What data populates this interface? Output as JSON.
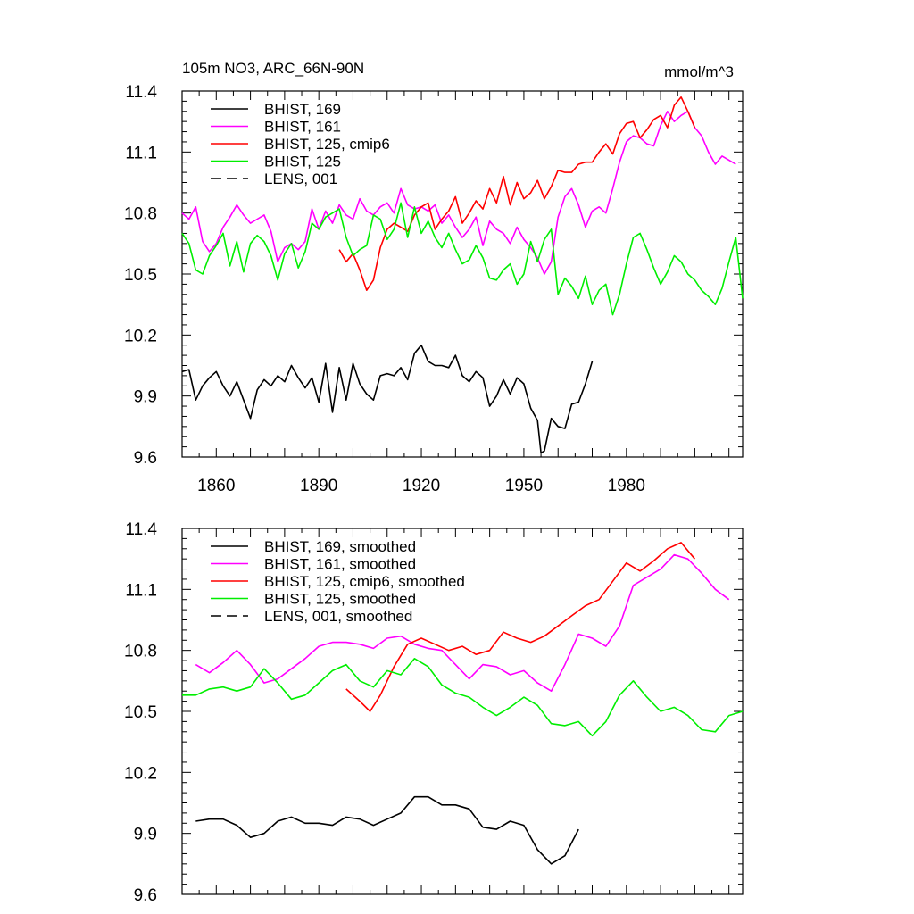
{
  "chart_data": [
    {
      "type": "line",
      "title": "105m NO3, ARC_66N-90N",
      "units": "mmol/m^3",
      "xlim": [
        1850,
        2014
      ],
      "ylim": [
        9.6,
        11.4
      ],
      "x_ticks": [
        1860,
        1890,
        1920,
        1950,
        1980
      ],
      "y_ticks": [
        9.6,
        9.9,
        10.2,
        10.5,
        10.8,
        11.1,
        11.4
      ],
      "y_tick_labels": [
        "9.6",
        "9.9",
        "10.2",
        "10.5",
        "10.8",
        "11.1",
        "11.4"
      ],
      "legend_position": "top-left",
      "legend": [
        {
          "label": "BHIST, 169",
          "color": "#000000",
          "dash": "solid"
        },
        {
          "label": "BHIST, 161",
          "color": "#ff00ff",
          "dash": "solid"
        },
        {
          "label": "BHIST, 125, cmip6",
          "color": "#ff0000",
          "dash": "solid"
        },
        {
          "label": "BHIST, 125",
          "color": "#00ee00",
          "dash": "solid"
        },
        {
          "label": "LENS, 001",
          "color": "#000000",
          "dash": "dashed"
        }
      ],
      "series": [
        {
          "name": "BHIST, 169",
          "color": "#000000",
          "x": [
            1850,
            1852,
            1854,
            1856,
            1858,
            1860,
            1862,
            1864,
            1866,
            1868,
            1870,
            1872,
            1874,
            1876,
            1878,
            1880,
            1882,
            1884,
            1886,
            1888,
            1890,
            1892,
            1894,
            1896,
            1898,
            1900,
            1902,
            1904,
            1906,
            1908,
            1910,
            1912,
            1914,
            1916,
            1918,
            1920,
            1922,
            1924,
            1926,
            1928,
            1930,
            1932,
            1934,
            1936,
            1938,
            1940,
            1942,
            1944,
            1946,
            1948,
            1950,
            1952,
            1954,
            1955,
            1956,
            1958,
            1960,
            1962,
            1964,
            1966,
            1968,
            1970
          ],
          "y": [
            10.02,
            10.03,
            9.88,
            9.95,
            9.99,
            10.02,
            9.95,
            9.9,
            9.97,
            9.88,
            9.79,
            9.93,
            9.98,
            9.95,
            10.0,
            9.97,
            10.05,
            9.99,
            9.94,
            9.99,
            9.87,
            10.06,
            9.82,
            10.04,
            9.88,
            10.06,
            9.96,
            9.91,
            9.88,
            10.0,
            10.01,
            10.0,
            10.04,
            9.98,
            10.11,
            10.15,
            10.07,
            10.05,
            10.05,
            10.04,
            10.1,
            10.0,
            9.97,
            10.02,
            9.99,
            9.85,
            9.9,
            9.98,
            9.91,
            9.99,
            9.96,
            9.84,
            9.78,
            9.62,
            9.63,
            9.79,
            9.75,
            9.74,
            9.86,
            9.87,
            9.96,
            10.07
          ]
        },
        {
          "name": "BHIST, 161",
          "color": "#ff00ff",
          "x": [
            1850,
            1852,
            1854,
            1856,
            1858,
            1860,
            1862,
            1864,
            1866,
            1868,
            1870,
            1872,
            1874,
            1876,
            1878,
            1880,
            1882,
            1884,
            1886,
            1888,
            1890,
            1892,
            1894,
            1896,
            1898,
            1900,
            1902,
            1904,
            1906,
            1908,
            1910,
            1912,
            1914,
            1916,
            1918,
            1920,
            1922,
            1924,
            1926,
            1928,
            1930,
            1932,
            1934,
            1936,
            1938,
            1940,
            1942,
            1944,
            1946,
            1948,
            1950,
            1952,
            1954,
            1956,
            1958,
            1960,
            1962,
            1964,
            1966,
            1968,
            1970,
            1972,
            1974,
            1976,
            1978,
            1980,
            1982,
            1984,
            1986,
            1988,
            1990,
            1992,
            1994,
            1996,
            1998,
            2000,
            2002,
            2004,
            2006,
            2008,
            2010,
            2012
          ],
          "y": [
            10.8,
            10.77,
            10.83,
            10.66,
            10.61,
            10.65,
            10.73,
            10.78,
            10.84,
            10.79,
            10.75,
            10.77,
            10.79,
            10.71,
            10.56,
            10.63,
            10.65,
            10.62,
            10.66,
            10.82,
            10.72,
            10.81,
            10.75,
            10.84,
            10.79,
            10.77,
            10.87,
            10.81,
            10.79,
            10.83,
            10.85,
            10.8,
            10.92,
            10.84,
            10.82,
            10.83,
            10.81,
            10.84,
            10.75,
            10.79,
            10.73,
            10.68,
            10.72,
            10.78,
            10.64,
            10.76,
            10.72,
            10.7,
            10.65,
            10.73,
            10.67,
            10.63,
            10.58,
            10.5,
            10.56,
            10.78,
            10.88,
            10.92,
            10.84,
            10.73,
            10.81,
            10.83,
            10.8,
            10.92,
            11.05,
            11.15,
            11.18,
            11.17,
            11.14,
            11.13,
            11.23,
            11.3,
            11.25,
            11.28,
            11.3,
            11.22,
            11.18,
            11.1,
            11.04,
            11.08,
            11.06,
            11.04
          ]
        },
        {
          "name": "BHIST, 125, cmip6",
          "color": "#ff0000",
          "x": [
            1896,
            1898,
            1900,
            1902,
            1904,
            1906,
            1908,
            1910,
            1912,
            1914,
            1916,
            1918,
            1920,
            1922,
            1924,
            1926,
            1928,
            1930,
            1932,
            1934,
            1936,
            1938,
            1940,
            1942,
            1944,
            1946,
            1948,
            1950,
            1952,
            1954,
            1956,
            1958,
            1960,
            1962,
            1964,
            1966,
            1968,
            1970,
            1972,
            1974,
            1976,
            1978,
            1980,
            1982,
            1984,
            1986,
            1988,
            1990,
            1992,
            1994,
            1996,
            1998,
            2000
          ],
          "y": [
            10.62,
            10.56,
            10.6,
            10.52,
            10.42,
            10.47,
            10.63,
            10.72,
            10.75,
            10.73,
            10.71,
            10.79,
            10.83,
            10.85,
            10.72,
            10.77,
            10.81,
            10.88,
            10.75,
            10.8,
            10.86,
            10.82,
            10.92,
            10.85,
            10.98,
            10.84,
            10.95,
            10.87,
            10.9,
            10.96,
            10.87,
            10.93,
            11.01,
            11.0,
            11.0,
            11.04,
            11.05,
            11.05,
            11.1,
            11.14,
            11.09,
            11.19,
            11.24,
            11.25,
            11.17,
            11.21,
            11.26,
            11.28,
            11.22,
            11.33,
            11.37,
            11.3,
            11.22
          ]
        },
        {
          "name": "BHIST, 125",
          "color": "#00ee00",
          "x": [
            1850,
            1852,
            1854,
            1856,
            1858,
            1860,
            1862,
            1864,
            1866,
            1868,
            1870,
            1872,
            1874,
            1876,
            1878,
            1880,
            1882,
            1884,
            1886,
            1888,
            1890,
            1892,
            1894,
            1896,
            1898,
            1900,
            1902,
            1904,
            1906,
            1908,
            1910,
            1912,
            1914,
            1916,
            1918,
            1920,
            1922,
            1924,
            1926,
            1928,
            1930,
            1932,
            1934,
            1936,
            1938,
            1940,
            1942,
            1944,
            1946,
            1948,
            1950,
            1952,
            1954,
            1956,
            1958,
            1960,
            1962,
            1964,
            1966,
            1968,
            1970,
            1972,
            1974,
            1976,
            1978,
            1980,
            1982,
            1984,
            1986,
            1988,
            1990,
            1992,
            1994,
            1996,
            1998,
            2000,
            2002,
            2004,
            2006,
            2008,
            2010,
            2012,
            2014
          ],
          "y": [
            10.7,
            10.65,
            10.52,
            10.5,
            10.59,
            10.64,
            10.7,
            10.54,
            10.66,
            10.51,
            10.65,
            10.69,
            10.66,
            10.59,
            10.47,
            10.6,
            10.65,
            10.53,
            10.61,
            10.75,
            10.72,
            10.78,
            10.8,
            10.82,
            10.68,
            10.59,
            10.62,
            10.64,
            10.79,
            10.77,
            10.67,
            10.72,
            10.85,
            10.68,
            10.83,
            10.7,
            10.76,
            10.68,
            10.63,
            10.7,
            10.62,
            10.55,
            10.57,
            10.64,
            10.58,
            10.48,
            10.47,
            10.52,
            10.55,
            10.45,
            10.5,
            10.66,
            10.56,
            10.67,
            10.72,
            10.4,
            10.48,
            10.44,
            10.38,
            10.49,
            10.35,
            10.42,
            10.45,
            10.3,
            10.4,
            10.55,
            10.68,
            10.7,
            10.62,
            10.53,
            10.45,
            10.51,
            10.59,
            10.56,
            10.5,
            10.47,
            10.42,
            10.39,
            10.35,
            10.43,
            10.56,
            10.68,
            10.38
          ]
        }
      ]
    },
    {
      "type": "line",
      "xlim": [
        1850,
        2014
      ],
      "ylim": [
        9.6,
        11.4
      ],
      "y_ticks": [
        9.6,
        9.9,
        10.2,
        10.5,
        10.8,
        11.1,
        11.4
      ],
      "y_tick_labels": [
        "9.6",
        "9.9",
        "10.2",
        "10.5",
        "10.8",
        "11.1",
        "11.4"
      ],
      "legend_position": "top-left",
      "legend": [
        {
          "label": "BHIST, 169, smoothed",
          "color": "#000000",
          "dash": "solid"
        },
        {
          "label": "BHIST, 161, smoothed",
          "color": "#ff00ff",
          "dash": "solid"
        },
        {
          "label": "BHIST, 125, cmip6, smoothed",
          "color": "#ff0000",
          "dash": "solid"
        },
        {
          "label": "BHIST, 125, smoothed",
          "color": "#00ee00",
          "dash": "solid"
        },
        {
          "label": "LENS, 001, smoothed",
          "color": "#000000",
          "dash": "dashed"
        }
      ],
      "series": [
        {
          "name": "BHIST, 169, smoothed",
          "color": "#000000",
          "x": [
            1854,
            1858,
            1862,
            1866,
            1870,
            1874,
            1878,
            1882,
            1886,
            1890,
            1894,
            1898,
            1902,
            1906,
            1910,
            1914,
            1918,
            1922,
            1926,
            1930,
            1934,
            1938,
            1942,
            1946,
            1950,
            1954,
            1958,
            1962,
            1966
          ],
          "y": [
            9.96,
            9.97,
            9.97,
            9.94,
            9.88,
            9.9,
            9.96,
            9.98,
            9.95,
            9.95,
            9.94,
            9.98,
            9.97,
            9.94,
            9.97,
            10.0,
            10.08,
            10.08,
            10.04,
            10.04,
            10.02,
            9.93,
            9.92,
            9.96,
            9.94,
            9.82,
            9.75,
            9.79,
            9.92
          ]
        },
        {
          "name": "BHIST, 161, smoothed",
          "color": "#ff00ff",
          "x": [
            1854,
            1858,
            1862,
            1866,
            1870,
            1874,
            1878,
            1882,
            1886,
            1890,
            1894,
            1898,
            1902,
            1906,
            1910,
            1914,
            1918,
            1922,
            1926,
            1930,
            1934,
            1938,
            1942,
            1946,
            1950,
            1954,
            1958,
            1962,
            1966,
            1970,
            1974,
            1978,
            1982,
            1986,
            1990,
            1994,
            1998,
            2002,
            2006,
            2010
          ],
          "y": [
            10.73,
            10.69,
            10.74,
            10.8,
            10.73,
            10.64,
            10.66,
            10.71,
            10.76,
            10.82,
            10.84,
            10.84,
            10.83,
            10.81,
            10.86,
            10.87,
            10.83,
            10.81,
            10.8,
            10.73,
            10.66,
            10.73,
            10.72,
            10.68,
            10.7,
            10.64,
            10.6,
            10.73,
            10.88,
            10.86,
            10.82,
            10.92,
            11.12,
            11.16,
            11.2,
            11.27,
            11.25,
            11.18,
            11.1,
            11.05
          ]
        },
        {
          "name": "BHIST, 125, cmip6, smoothed",
          "color": "#ff0000",
          "x": [
            1898,
            1902,
            1905,
            1908,
            1912,
            1916,
            1920,
            1924,
            1928,
            1932,
            1936,
            1940,
            1944,
            1948,
            1952,
            1956,
            1960,
            1964,
            1968,
            1972,
            1976,
            1980,
            1984,
            1988,
            1992,
            1996,
            2000
          ],
          "y": [
            10.61,
            10.55,
            10.5,
            10.58,
            10.72,
            10.83,
            10.86,
            10.83,
            10.8,
            10.82,
            10.78,
            10.8,
            10.89,
            10.86,
            10.84,
            10.87,
            10.92,
            10.97,
            11.02,
            11.05,
            11.14,
            11.23,
            11.19,
            11.24,
            11.3,
            11.33,
            11.25
          ]
        },
        {
          "name": "BHIST, 125, smoothed",
          "color": "#00ee00",
          "x": [
            1850,
            1854,
            1858,
            1862,
            1866,
            1870,
            1874,
            1878,
            1882,
            1886,
            1890,
            1894,
            1898,
            1902,
            1906,
            1910,
            1914,
            1918,
            1922,
            1926,
            1930,
            1934,
            1938,
            1942,
            1946,
            1950,
            1954,
            1958,
            1962,
            1966,
            1970,
            1974,
            1978,
            1982,
            1986,
            1990,
            1994,
            1998,
            2002,
            2006,
            2010,
            2014
          ],
          "y": [
            10.58,
            10.58,
            10.61,
            10.62,
            10.6,
            10.62,
            10.71,
            10.64,
            10.56,
            10.58,
            10.64,
            10.7,
            10.73,
            10.65,
            10.62,
            10.7,
            10.68,
            10.76,
            10.72,
            10.63,
            10.59,
            10.57,
            10.52,
            10.48,
            10.52,
            10.57,
            10.53,
            10.44,
            10.43,
            10.45,
            10.38,
            10.45,
            10.58,
            10.65,
            10.57,
            10.5,
            10.52,
            10.48,
            10.41,
            10.4,
            10.48,
            10.5
          ]
        }
      ]
    }
  ]
}
